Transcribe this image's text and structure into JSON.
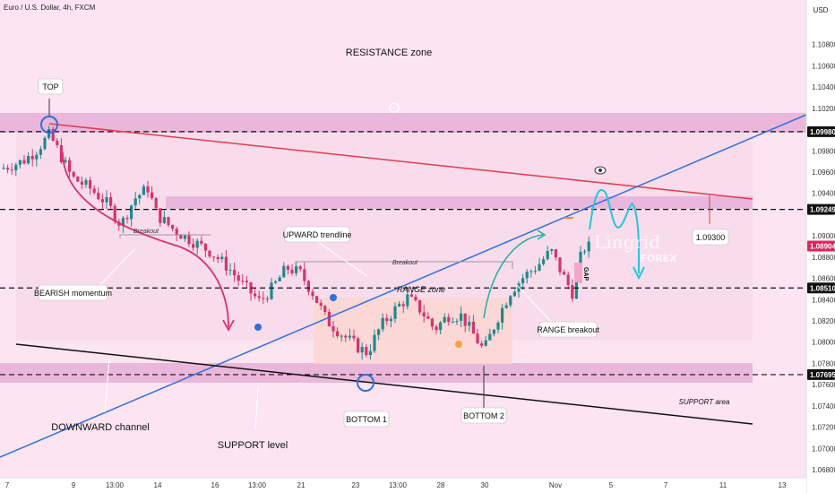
{
  "header": {
    "title": "Euro / U.S. Dollar, 4h, FXCM",
    "currency": "USD"
  },
  "chart_data": {
    "type": "candlestick",
    "ylim": [
      1.0675,
      1.1105
    ],
    "y_ticks": [
      "1.10800",
      "1.10600",
      "1.10400",
      "1.10200",
      "1.09800",
      "1.09600",
      "1.09400",
      "1.09000",
      "1.08800",
      "1.08600",
      "1.08400",
      "1.08200",
      "1.08000",
      "1.07800",
      "1.07600",
      "1.07400",
      "1.07200",
      "1.07000",
      "1.06800"
    ],
    "x_ticks": [
      "7",
      "9",
      "13:00",
      "14",
      "16",
      "13:00",
      "21",
      "23",
      "13:00",
      "28",
      "30",
      "Nov",
      "5",
      "7",
      "11",
      "13"
    ],
    "price_markers": [
      {
        "label": "1.09980",
        "value": 1.0998,
        "color": "#111111"
      },
      {
        "label": "1.09249",
        "value": 1.09249,
        "color": "#111111"
      },
      {
        "label": "1.08904",
        "value": 1.08904,
        "color": "#e0245e"
      },
      {
        "label": "1.08510",
        "value": 1.0851,
        "color": "#111111"
      },
      {
        "label": "1.07695",
        "value": 1.07695,
        "color": "#111111"
      }
    ],
    "annotations": {
      "resistance_zone": "RESISTANCE zone",
      "top": "TOP",
      "breakout_1": "Breakout",
      "bearish_momentum": "BEARISH momentum",
      "upward_trendline": "UPWARD trendline",
      "breakout_2": "Breakout",
      "range_zone": "RANGE zone",
      "range_breakout": "RANGE breakout",
      "target": "1.09300",
      "gap": "GAP",
      "bottom_1": "BOTTOM 1",
      "bottom_2": "BOTTOM 2",
      "support_area": "SUPPORT area",
      "downward_channel": "DOWNWARD channel",
      "support_level": "SUPPORT level"
    },
    "watermark": {
      "brand": "Lingrid",
      "sub": "FOREX"
    },
    "colors": {
      "up": "#1f8a8a",
      "down": "#d6336c",
      "trend_up": "#2f6fe0",
      "trend_down": "#e23b4e",
      "zone": "#e9b6dd"
    }
  }
}
